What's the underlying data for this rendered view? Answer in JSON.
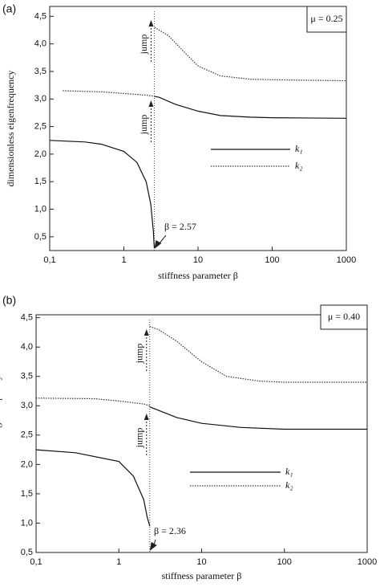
{
  "chart_data": [
    {
      "type": "line",
      "panel_label": "(a)",
      "parameter_label": "μ = 0.25",
      "xlabel": "stiffness parameter β",
      "ylabel": "dimensionless eigenfrequency",
      "xscale": "log",
      "xlim": [
        0.1,
        1000
      ],
      "ylim": [
        0.25,
        4.68
      ],
      "xticks": [
        {
          "value": 0.1,
          "label": "0,1"
        },
        1,
        10,
        100,
        1000
      ],
      "yticks": [
        {
          "value": 0.5,
          "label": "0,5"
        },
        {
          "value": 1.0,
          "label": "1,0"
        },
        {
          "value": 1.5,
          "label": "1,5"
        },
        {
          "value": 2.0,
          "label": "2,0"
        },
        {
          "value": 2.5,
          "label": "2,5"
        },
        {
          "value": 3.0,
          "label": "3,0"
        },
        {
          "value": 3.5,
          "label": "3,5"
        },
        {
          "value": 4.0,
          "label": "4,0"
        },
        {
          "value": 4.5,
          "label": "4,5"
        }
      ],
      "jump_x": 2.57,
      "jump_labels": [
        "jump",
        "jump"
      ],
      "critical_label": "β = 2.57",
      "series": [
        {
          "name": "k₁",
          "style": "solid",
          "color": "#111111",
          "x": [
            0.1,
            0.3,
            0.5,
            1,
            1.5,
            2,
            2.3,
            2.5,
            2.57,
            null,
            2.57,
            3,
            5,
            10,
            20,
            50,
            100,
            1000
          ],
          "values": [
            2.25,
            2.22,
            2.18,
            2.05,
            1.85,
            1.5,
            1.1,
            0.6,
            0.3,
            null,
            3.05,
            3.03,
            2.9,
            2.78,
            2.7,
            2.67,
            2.66,
            2.65
          ]
        },
        {
          "name": "k₂",
          "style": "dotted",
          "color": "#333333",
          "x": [
            0.15,
            0.5,
            1,
            2,
            2.57,
            null,
            2.6,
            3,
            4,
            6,
            10,
            20,
            50,
            100,
            1000
          ],
          "values": [
            3.15,
            3.13,
            3.1,
            3.07,
            3.05,
            null,
            4.3,
            4.25,
            4.15,
            3.9,
            3.6,
            3.42,
            3.36,
            3.35,
            3.33
          ]
        }
      ]
    },
    {
      "type": "line",
      "panel_label": "(b)",
      "parameter_label": "μ = 0.40",
      "xlabel": "stiffness parameter β",
      "ylabel": "dimensionless eigenfrequency",
      "xscale": "log",
      "xlim": [
        0.1,
        1000
      ],
      "ylim": [
        0.5,
        4.55
      ],
      "xticks": [
        {
          "value": 0.1,
          "label": "0,1"
        },
        1,
        10,
        100,
        1000
      ],
      "yticks": [
        {
          "value": 0.5,
          "label": "0,5"
        },
        {
          "value": 1.0,
          "label": "1,0"
        },
        {
          "value": 1.5,
          "label": "1,5"
        },
        {
          "value": 2.0,
          "label": "2,0"
        },
        {
          "value": 2.5,
          "label": "2,5"
        },
        {
          "value": 3.0,
          "label": "3,0"
        },
        {
          "value": 3.5,
          "label": "3,5"
        },
        {
          "value": 4.0,
          "label": "4,0"
        },
        {
          "value": 4.5,
          "label": "4,5"
        }
      ],
      "jump_x": 2.36,
      "jump_labels": [
        "jump",
        "jump"
      ],
      "critical_label": "β = 2.36",
      "series": [
        {
          "name": "k₁",
          "style": "solid",
          "color": "#111111",
          "x": [
            0.1,
            0.3,
            1,
            1.5,
            2,
            2.2,
            2.36,
            null,
            2.36,
            5,
            10,
            30,
            100,
            1000
          ],
          "values": [
            2.25,
            2.2,
            2.05,
            1.8,
            1.4,
            1.1,
            0.95,
            null,
            2.98,
            2.8,
            2.7,
            2.63,
            2.6,
            2.6
          ]
        },
        {
          "name": "k₂",
          "style": "dotted",
          "color": "#333333",
          "x": [
            0.1,
            0.5,
            1,
            2,
            2.36,
            null,
            2.36,
            3,
            5,
            10,
            20,
            50,
            100,
            1000
          ],
          "values": [
            3.13,
            3.12,
            3.08,
            3.03,
            3.0,
            null,
            4.35,
            4.3,
            4.1,
            3.75,
            3.5,
            3.42,
            3.4,
            3.4
          ]
        }
      ]
    }
  ]
}
